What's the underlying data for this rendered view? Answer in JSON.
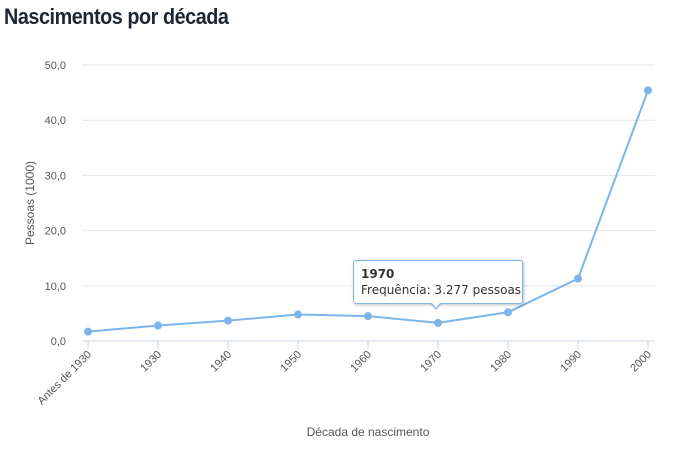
{
  "title": "Nascimentos por década",
  "chart_data": {
    "type": "line",
    "categories": [
      "Antes de 1930",
      "1930",
      "1940",
      "1950",
      "1960",
      "1970",
      "1980",
      "1990",
      "2000"
    ],
    "values": [
      1.7,
      2.8,
      3.7,
      4.8,
      4.5,
      3.277,
      5.2,
      11.3,
      45.4
    ],
    "xlabel": "Década de nascimento",
    "ylabel": "Pessoas (1000)",
    "ylim": [
      0,
      50
    ],
    "yticks": [
      "0,0",
      "10,0",
      "20,0",
      "30,0",
      "40,0",
      "50,0"
    ],
    "grid": true,
    "legend": "none",
    "color": "#7cb5ec",
    "tooltip": {
      "title": "1970",
      "text": "Frequência: 3.277 pessoas",
      "category": "1970"
    }
  }
}
